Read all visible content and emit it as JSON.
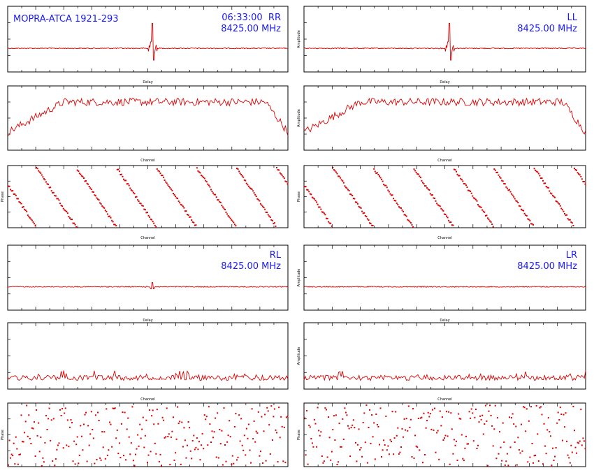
{
  "header": {
    "source_label": "MOPRA-ATCA 1921-293",
    "time_label": "06:33:00",
    "stokes": [
      "RR",
      "LL",
      "RL",
      "LR"
    ],
    "frequency": "8425.00 MHz"
  },
  "axis_labels": {
    "delay": "Delay",
    "channel": "Channel",
    "amplitude": "Amplitude",
    "phase": "Phase"
  },
  "colors": {
    "trace": "#dd0000",
    "annotation": "#1a1aff",
    "axes": "#000000"
  },
  "chart_data": [
    {
      "type": "line",
      "panel": "RR delay",
      "xlabel": "Delay",
      "ylabel": "",
      "xlim": [
        -256,
        256
      ],
      "peak_at": 8,
      "peak_amplitude": "strong",
      "grid": false
    },
    {
      "type": "line",
      "panel": "LL delay",
      "xlabel": "Delay",
      "ylabel": "Amplitude",
      "xlim": [
        -256,
        256
      ],
      "peak_at": 8,
      "peak_amplitude": "strong",
      "grid": false
    },
    {
      "type": "line",
      "panel": "RR amplitude",
      "xlabel": "Channel",
      "ylabel": "",
      "xlim": [
        0,
        512
      ],
      "shape": "bandpass",
      "grid": false
    },
    {
      "type": "line",
      "panel": "LL amplitude",
      "xlabel": "Channel",
      "ylabel": "Amplitude",
      "xlim": [
        0,
        512
      ],
      "shape": "bandpass",
      "grid": false
    },
    {
      "type": "scatter",
      "panel": "RR phase",
      "xlabel": "Channel",
      "ylabel": "Phase",
      "xlim": [
        0,
        512
      ],
      "ylim": [
        -180,
        180
      ],
      "phase_wraps": 7,
      "grid": false
    },
    {
      "type": "scatter",
      "panel": "LL phase",
      "xlabel": "Channel",
      "ylabel": "Phase",
      "xlim": [
        0,
        512
      ],
      "ylim": [
        -180,
        180
      ],
      "phase_wraps": 7,
      "grid": false
    },
    {
      "type": "line",
      "panel": "RL delay",
      "xlabel": "Delay",
      "ylabel": "",
      "xlim": [
        -256,
        256
      ],
      "peak_at": 8,
      "peak_amplitude": "weak",
      "grid": false
    },
    {
      "type": "line",
      "panel": "LR delay",
      "xlabel": "Delay",
      "ylabel": "Amplitude",
      "xlim": [
        -256,
        256
      ],
      "peak_amplitude": "none",
      "grid": false
    },
    {
      "type": "line",
      "panel": "RL amplitude",
      "xlabel": "Channel",
      "ylabel": "",
      "xlim": [
        0,
        512
      ],
      "shape": "noise",
      "grid": false
    },
    {
      "type": "line",
      "panel": "LR amplitude",
      "xlabel": "Channel",
      "ylabel": "Amplitude",
      "xlim": [
        0,
        512
      ],
      "shape": "noise",
      "grid": false
    },
    {
      "type": "scatter",
      "panel": "RL phase",
      "xlabel": "Channel",
      "ylabel": "Phase",
      "xlim": [
        0,
        512
      ],
      "ylim": [
        -180,
        180
      ],
      "shape": "random",
      "grid": false
    },
    {
      "type": "scatter",
      "panel": "LR phase",
      "xlabel": "Channel",
      "ylabel": "Phase",
      "xlim": [
        0,
        512
      ],
      "ylim": [
        -180,
        180
      ],
      "shape": "random",
      "grid": false
    }
  ]
}
